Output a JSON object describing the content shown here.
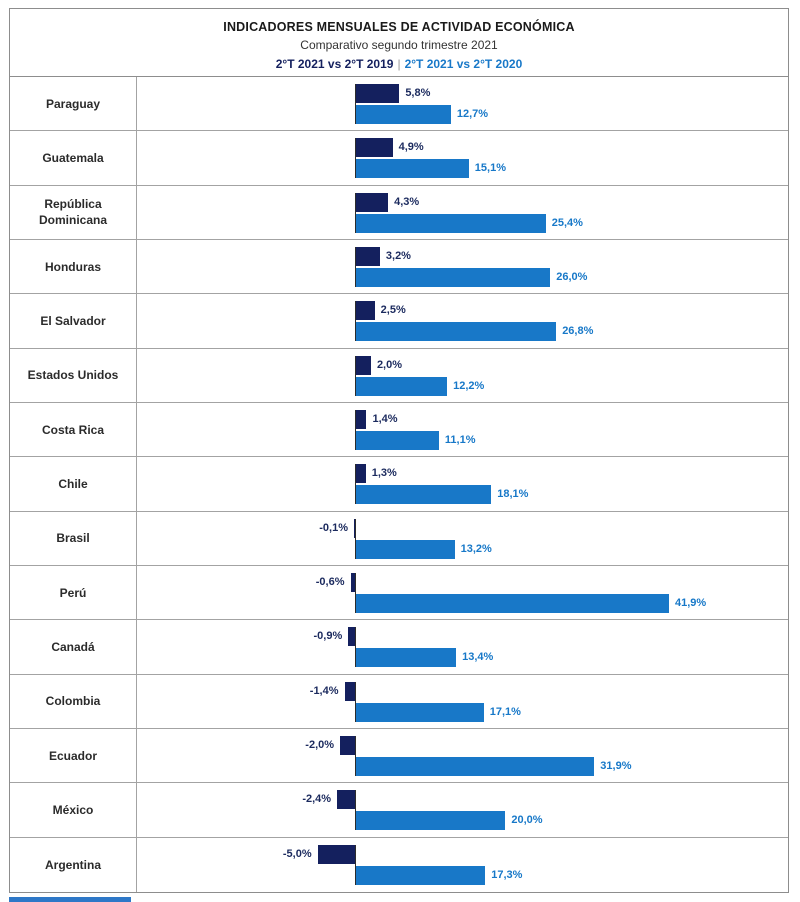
{
  "chart_data": {
    "type": "bar",
    "orientation": "horizontal",
    "title": "INDICADORES MENSUALES DE ACTIVIDAD ECONÓMICA",
    "subtitle": "Comparativo segundo trimestre 2021",
    "legend_separator": "|",
    "legend_position": "top",
    "value_suffix": "%",
    "xlim": [
      -7,
      45
    ],
    "grid": false,
    "categories": [
      "Paraguay",
      "Guatemala",
      "República Dominicana",
      "Honduras",
      "El Salvador",
      "Estados Unidos",
      "Costa Rica",
      "Chile",
      "Brasil",
      "Perú",
      "Canadá",
      "Colombia",
      "Ecuador",
      "México",
      "Argentina"
    ],
    "series": [
      {
        "name": "2°T 2021 vs 2°T 2019",
        "color": "#14205e",
        "label_color": "#1b2a5e",
        "values": [
          5.8,
          4.9,
          4.3,
          3.2,
          2.5,
          2.0,
          1.4,
          1.3,
          -0.1,
          -0.6,
          -0.9,
          -1.4,
          -2.0,
          -2.4,
          -5.0
        ],
        "labels": [
          "5,8%",
          "4,9%",
          "4,3%",
          "3,2%",
          "2,5%",
          "2,0%",
          "1,4%",
          "1,3%",
          "-0,1%",
          "-0,6%",
          "-0,9%",
          "-1,4%",
          "-2,0%",
          "-2,4%",
          "-5,0%"
        ]
      },
      {
        "name": "2°T 2021 vs 2°T 2020",
        "color": "#1878c8",
        "label_color": "#1778c8",
        "values": [
          12.7,
          15.1,
          25.4,
          26.0,
          26.8,
          12.2,
          11.1,
          18.1,
          13.2,
          41.9,
          13.4,
          17.1,
          31.9,
          20.0,
          17.3
        ],
        "labels": [
          "12,7%",
          "15,1%",
          "25,4%",
          "26,0%",
          "26,8%",
          "12,2%",
          "11,1%",
          "18,1%",
          "13,2%",
          "41,9%",
          "13,4%",
          "17,1%",
          "31,9%",
          "20,0%",
          "17,3%"
        ]
      }
    ]
  }
}
